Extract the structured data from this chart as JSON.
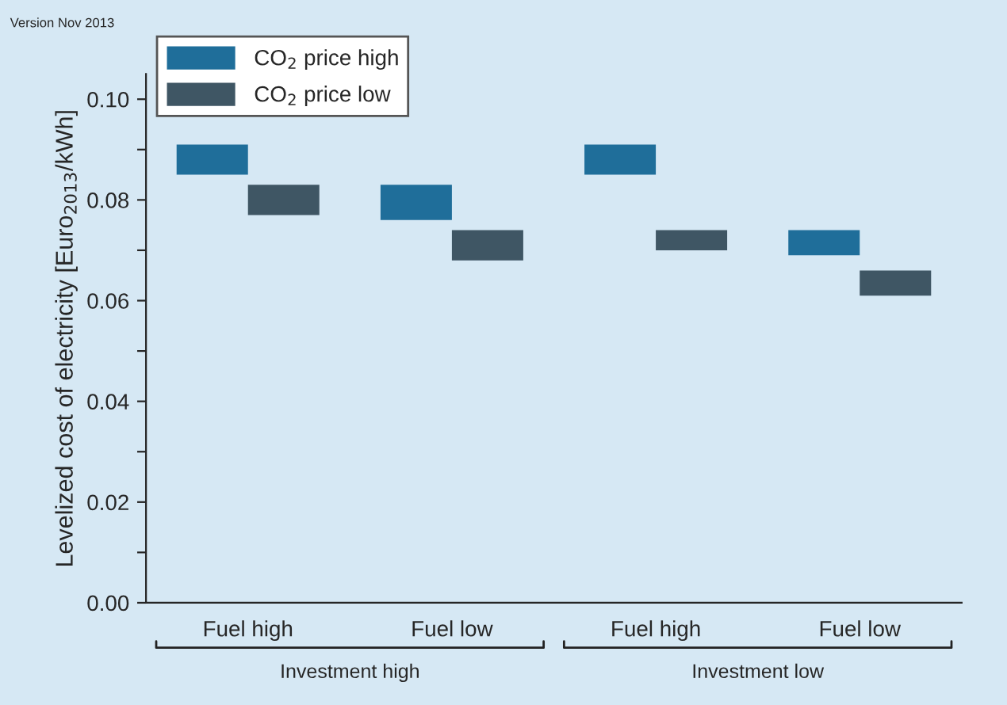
{
  "chart_data": {
    "type": "bar",
    "ylabel": "Levelized cost of electricity [Euro$_{2013}$/kWh]",
    "categories": [
      "Fuel high",
      "Fuel low",
      "Fuel high",
      "Fuel low"
    ],
    "series": [
      {
        "name": "CO$_{2}$ price high",
        "color": "#1f6e9a",
        "values": [
          0.006,
          0.007,
          0.006,
          0.005
        ],
        "base": [
          0.085,
          0.076,
          0.085,
          0.069
        ]
      },
      {
        "name": "CO$_{2}$ price low",
        "color": "#3f5664",
        "values": [
          0.006,
          0.006,
          0.004,
          0.005
        ],
        "base": [
          0.077,
          0.068,
          0.07,
          0.061
        ]
      }
    ],
    "ylim": [
      0,
      0.105
    ],
    "yticks": [
      {
        "value": 0,
        "label": "0.00"
      },
      {
        "value": 0.01,
        "label": null
      },
      {
        "value": 0.02,
        "label": "0.02"
      },
      {
        "value": 0.03,
        "label": null
      },
      {
        "value": 0.04,
        "label": "0.04"
      },
      {
        "value": 0.05,
        "label": null
      },
      {
        "value": 0.06,
        "label": "0.06"
      },
      {
        "value": 0.07,
        "label": null
      },
      {
        "value": 0.08,
        "label": "0.08"
      },
      {
        "value": 0.09,
        "label": null
      },
      {
        "value": 0.1,
        "label": "0.10"
      }
    ],
    "annotations": [
      "Version Nov 2013",
      "Investment high",
      "Investment low"
    ],
    "legend": "top left",
    "grid": false
  }
}
